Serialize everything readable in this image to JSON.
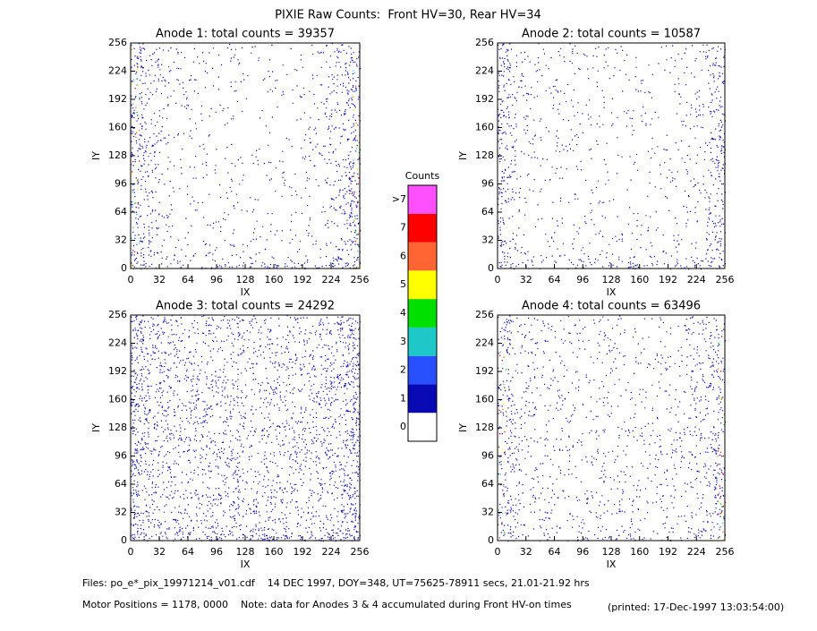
{
  "title": "PIXIE Raw Counts:  Front HV=30, Rear HV=34",
  "footer": [
    "Files: po_e*_pix_19971214_v01.cdf    14 DEC 1997, DOY=348, UT=75625-78911 secs, 21.01-21.92 hrs",
    "Motor Positions = 1178, 0000    Note: data for Anodes 3 & 4 accumulated during Front HV-on times",
    "(printed: 17-Dec-1997 13:03:54:00)"
  ],
  "chart_data": [
    {
      "type": "heatmap",
      "title": "Anode 1: total counts = 39357",
      "xlabel": "IX",
      "ylabel": "IY",
      "xlim": [
        0,
        256
      ],
      "ylim": [
        0,
        256
      ],
      "xticks": [
        0,
        32,
        64,
        96,
        128,
        160,
        192,
        224,
        256
      ],
      "yticks": [
        0,
        32,
        64,
        96,
        128,
        160,
        192,
        224,
        256
      ]
    },
    {
      "type": "heatmap",
      "title": "Anode 2: total counts = 10587",
      "xlabel": "IX",
      "ylabel": "IY",
      "xlim": [
        0,
        256
      ],
      "ylim": [
        0,
        256
      ],
      "xticks": [
        0,
        32,
        64,
        96,
        128,
        160,
        192,
        224,
        256
      ],
      "yticks": [
        0,
        32,
        64,
        96,
        128,
        160,
        192,
        224,
        256
      ]
    },
    {
      "type": "heatmap",
      "title": "Anode 3: total counts = 24292",
      "xlabel": "IX",
      "ylabel": "IY",
      "xlim": [
        0,
        256
      ],
      "ylim": [
        0,
        256
      ],
      "xticks": [
        0,
        32,
        64,
        96,
        128,
        160,
        192,
        224,
        256
      ],
      "yticks": [
        0,
        32,
        64,
        96,
        128,
        160,
        192,
        224,
        256
      ]
    },
    {
      "type": "heatmap",
      "title": "Anode 4: total counts = 63496",
      "xlabel": "IX",
      "ylabel": "IY",
      "xlim": [
        0,
        256
      ],
      "ylim": [
        0,
        256
      ],
      "xticks": [
        0,
        32,
        64,
        96,
        128,
        160,
        192,
        224,
        256
      ],
      "yticks": [
        0,
        32,
        64,
        96,
        128,
        160,
        192,
        224,
        256
      ]
    },
    {
      "type": "colorbar",
      "title": "Counts",
      "categories": [
        "0",
        "1",
        "2",
        "3",
        "4",
        "5",
        "6",
        "7",
        ">7"
      ],
      "colors": [
        "#ffffff",
        "#0a0ab4",
        "#2850ff",
        "#1ec8c8",
        "#00e000",
        "#ffff00",
        "#ff6432",
        "#ff0000",
        "#ff50ff"
      ]
    }
  ]
}
